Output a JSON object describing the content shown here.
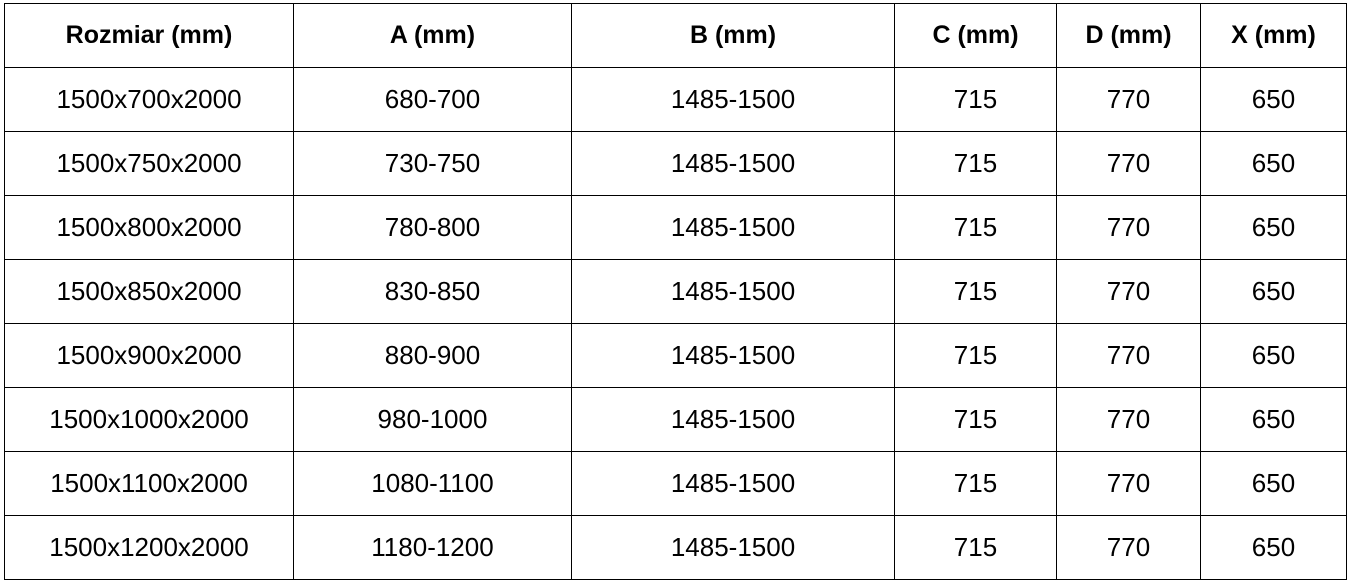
{
  "chart_data": {
    "type": "table",
    "columns": [
      "Rozmiar (mm)",
      "A (mm)",
      "B (mm)",
      "C (mm)",
      "D (mm)",
      "X (mm)"
    ],
    "rows": [
      [
        "1500x700x2000",
        "680-700",
        "1485-1500",
        "715",
        "770",
        "650"
      ],
      [
        "1500x750x2000",
        "730-750",
        "1485-1500",
        "715",
        "770",
        "650"
      ],
      [
        "1500x800x2000",
        "780-800",
        "1485-1500",
        "715",
        "770",
        "650"
      ],
      [
        "1500x850x2000",
        "830-850",
        "1485-1500",
        "715",
        "770",
        "650"
      ],
      [
        "1500x900x2000",
        "880-900",
        "1485-1500",
        "715",
        "770",
        "650"
      ],
      [
        "1500x1000x2000",
        "980-1000",
        "1485-1500",
        "715",
        "770",
        "650"
      ],
      [
        "1500x1100x2000",
        "1080-1100",
        "1485-1500",
        "715",
        "770",
        "650"
      ],
      [
        "1500x1200x2000",
        "1180-1200",
        "1485-1500",
        "715",
        "770",
        "650"
      ]
    ]
  }
}
